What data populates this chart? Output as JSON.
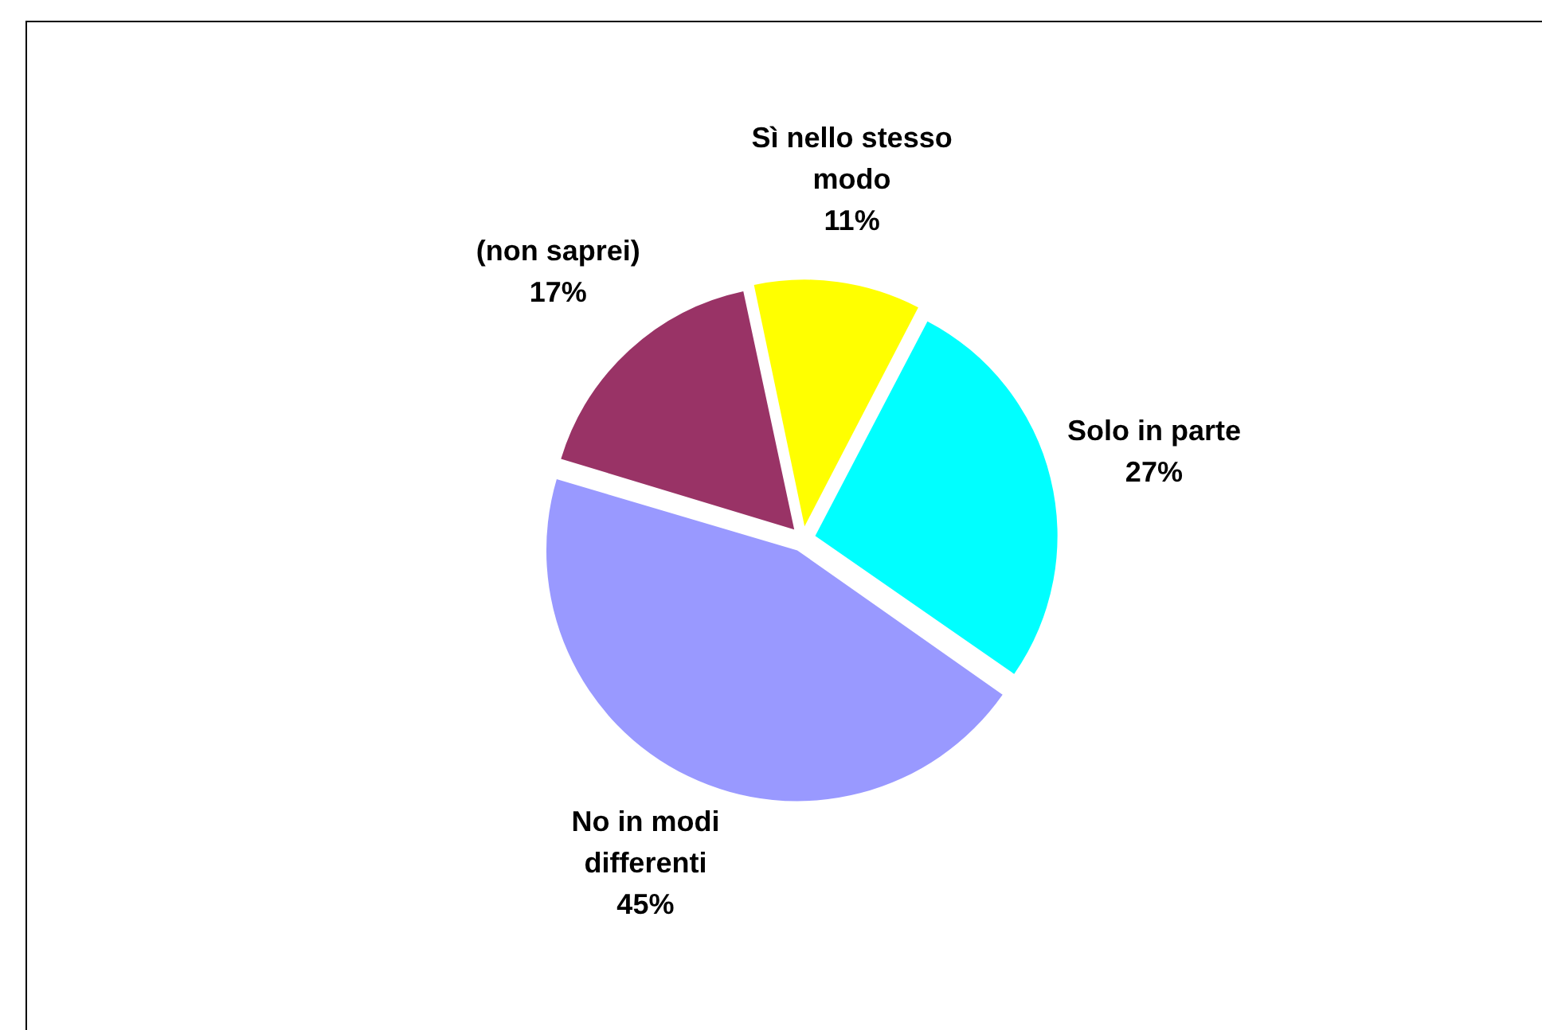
{
  "chart_data": {
    "type": "pie",
    "categories": [
      "Sì nello stesso modo",
      "Solo in parte",
      "No in modi differenti",
      "(non saprei)"
    ],
    "values": [
      11,
      27,
      45,
      17
    ],
    "colors": [
      "#ffff00",
      "#00ffff",
      "#9999ff",
      "#993366"
    ],
    "value_labels": [
      "11%",
      "27%",
      "45%",
      "17%"
    ],
    "legend": false
  }
}
